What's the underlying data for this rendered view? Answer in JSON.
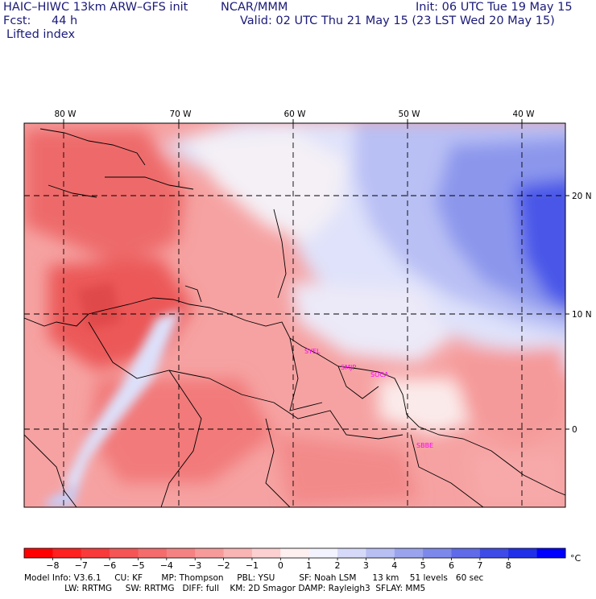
{
  "header": {
    "title": "HAIC–HIWC 13km ARW–GFS init",
    "org": "NCAR/MMM",
    "init": "Init: 06 UTC Tue 19 May 15",
    "fcst_label": "Fcst:",
    "fcst_value": "44 h",
    "valid": "Valid: 02 UTC Thu 21 May 15 (23 LST Wed 20 May 15)",
    "field": "Lifted index"
  },
  "map": {
    "lon_labels": [
      "80 W",
      "70 W",
      "60 W",
      "50 W",
      "40 W"
    ],
    "lat_labels": [
      "20 N",
      "10 N",
      "0"
    ],
    "stations": [
      "SYEL",
      "SMJP",
      "SOCA",
      "SBBE"
    ],
    "colors": {
      "unstable_strong": "#ef5a5a",
      "unstable_mid": "#f59a9a",
      "unstable_weak": "#fcd2d2",
      "neutral": "#ffffff",
      "stable_weak": "#d8dcf8",
      "stable_mid": "#9aa4ee",
      "stable_strong": "#3a48ea"
    }
  },
  "colorbar": {
    "labels": [
      "−8",
      "−7",
      "−6",
      "−5",
      "−4",
      "−3",
      "−2",
      "−1",
      "0",
      "1",
      "2",
      "3",
      "4",
      "5",
      "6",
      "7",
      "8"
    ],
    "unit": "°C",
    "colors": [
      "#ff0000",
      "#ff2020",
      "#f83a3a",
      "#f55555",
      "#f46c6c",
      "#f58282",
      "#f79a9a",
      "#f9b4b4",
      "#fcd0d0",
      "#fff0f0",
      "#f3f3ff",
      "#d6daf8",
      "#b8bff3",
      "#9aa4ee",
      "#7d88eb",
      "#5f6be8",
      "#3f4be6",
      "#2030e8",
      "#0000ff"
    ]
  },
  "info": {
    "line1": "Model Info: V3.6.1     CU: KF       MP: Thompson     PBL: YSU         SF: Noah LSM      13 km    51 levels   60 sec",
    "line2": "               LW: RRTMG     SW: RRTMG   DIFF: full    KM: 2D Smagor DAMP: Rayleigh3  SFLAY: MM5"
  }
}
